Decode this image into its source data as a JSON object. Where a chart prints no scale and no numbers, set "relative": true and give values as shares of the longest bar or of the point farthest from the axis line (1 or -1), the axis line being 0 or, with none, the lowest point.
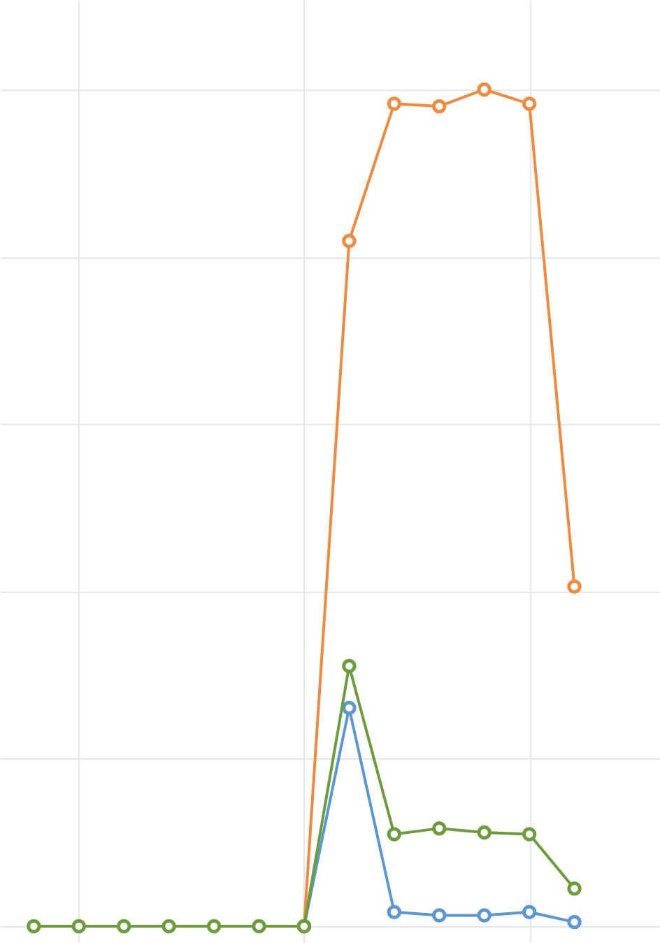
{
  "chart_data": {
    "type": "line",
    "relative": true,
    "grid": true,
    "marker": "circle",
    "line_style": "solid",
    "categories": [
      null,
      null,
      null,
      null,
      null,
      null,
      null,
      null,
      null,
      null,
      null,
      null,
      null
    ],
    "series": [
      {
        "color": "#5b97d5",
        "values": [
          null,
          null,
          null,
          null,
          null,
          null,
          0,
          0.261,
          0.017,
          0.013,
          0.013,
          0.017,
          0.005
        ]
      },
      {
        "color": "#f08a3e",
        "values": [
          null,
          null,
          null,
          null,
          null,
          null,
          0,
          0.819,
          0.983,
          0.98,
          1,
          0.983,
          0.406
        ]
      },
      {
        "color": "#6c9c3c",
        "values": [
          0,
          0,
          0,
          0,
          0,
          0,
          0,
          0.311,
          0.11,
          0.117,
          0.112,
          0.11,
          0.045
        ]
      }
    ]
  }
}
